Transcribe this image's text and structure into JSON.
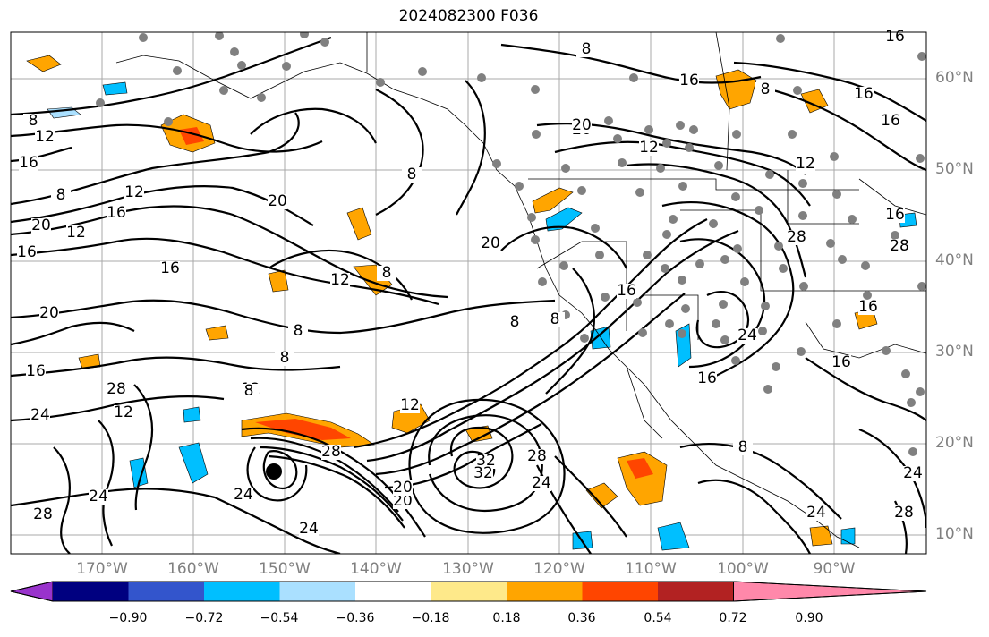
{
  "title": "2024082300 F036",
  "latitude_labels": [
    "60°N",
    "50°N",
    "40°N",
    "30°N",
    "20°N",
    "10°N"
  ],
  "longitude_labels": [
    "170°W",
    "160°W",
    "150°W",
    "140°W",
    "130°W",
    "120°W",
    "110°W",
    "100°W",
    "90°W"
  ],
  "colorbar": {
    "colors": [
      "#9933cc",
      "#000080",
      "#3355cc",
      "#00bfff",
      "#aae0ff",
      "#ffffff",
      "#fee98a",
      "#ffa500",
      "#ff4500",
      "#b22222",
      "#ff88aa"
    ],
    "tick_labels": [
      "−0.90",
      "−0.72",
      "−0.54",
      "−0.36",
      "−0.18",
      "0.18",
      "0.36",
      "0.54",
      "0.72",
      "0.90"
    ]
  },
  "contour_labels": [
    "8",
    "12",
    "16",
    "16",
    "8",
    "20",
    "12",
    "16",
    "20",
    "12",
    "8",
    "20",
    "8",
    "16",
    "12",
    "16",
    "20",
    "8",
    "8",
    "8",
    "8",
    "12",
    "16",
    "20",
    "16",
    "24",
    "28",
    "32",
    "28",
    "24",
    "28",
    "24",
    "20",
    "24",
    "28",
    "24",
    "8",
    "16",
    "16",
    "20",
    "8",
    "12",
    "16",
    "12",
    "28",
    "24",
    "16",
    "16",
    "8",
    "24",
    "28",
    "24",
    "20",
    "12",
    "8",
    "8",
    "12",
    "28",
    "32",
    "16",
    "16",
    "12"
  ],
  "symbols": {
    "storm_center": "filled-black-circle",
    "stations": "gray-dot-markers"
  }
}
